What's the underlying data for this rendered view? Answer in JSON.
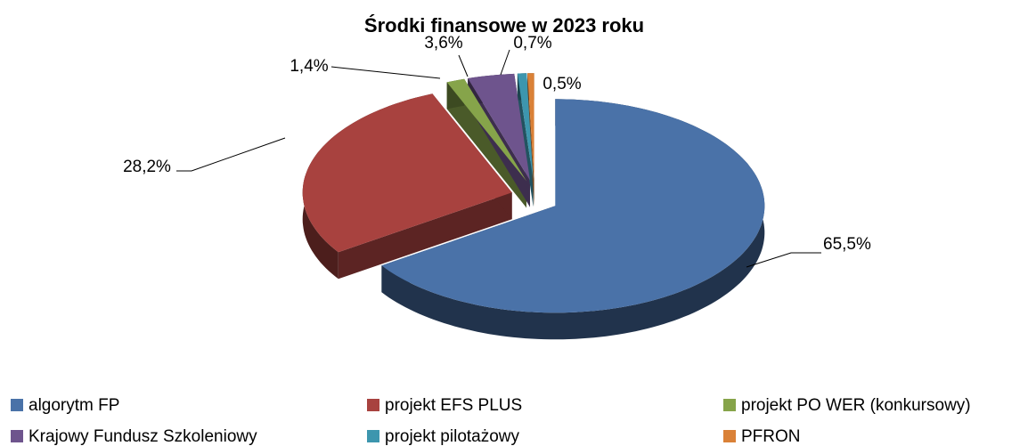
{
  "chart_data": {
    "type": "pie3d",
    "title": "Środki finansowe w 2023 roku",
    "categories": [
      "algorytm FP",
      "projekt EFS PLUS",
      "projekt PO WER (konkursowy)",
      "Krajowy Fundusz Szkoleniowy",
      "projekt pilotażowy",
      "PFRON"
    ],
    "values": [
      65.5,
      28.2,
      1.4,
      3.6,
      0.7,
      0.5
    ],
    "value_labels": [
      "65,5%",
      "28,2%",
      "1,4%",
      "3,6%",
      "0,7%",
      "0,5%"
    ],
    "colors": [
      "#4a72a8",
      "#a8423f",
      "#86a44a",
      "#6e548d",
      "#3d96ae",
      "#da8137"
    ],
    "legend": "bottom"
  }
}
